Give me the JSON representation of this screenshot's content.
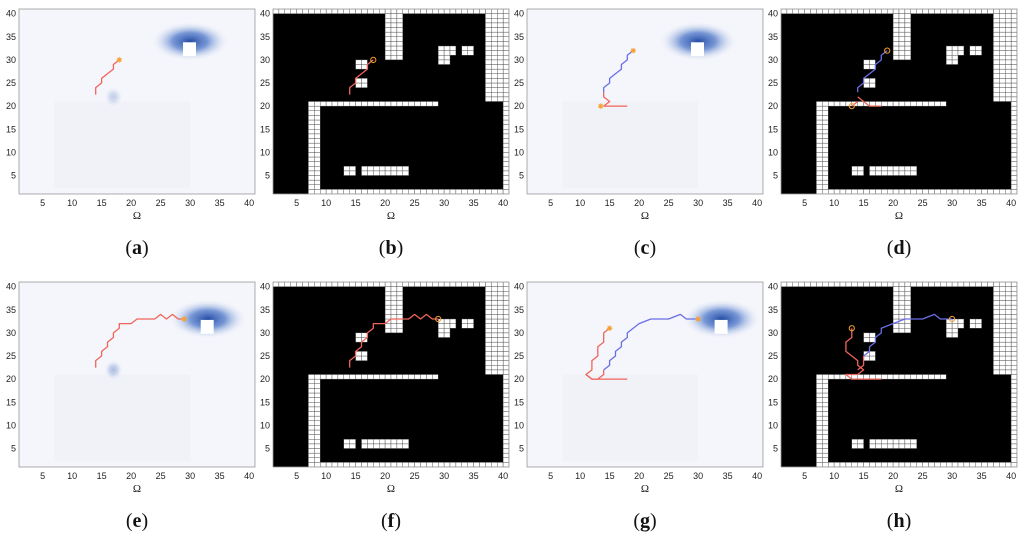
{
  "x_axis_label": "Ω",
  "x_ticks": [
    5,
    10,
    15,
    20,
    25,
    30,
    35,
    40
  ],
  "y_ticks": [
    5,
    10,
    15,
    20,
    25,
    30,
    35,
    40
  ],
  "domain": [
    1,
    41
  ],
  "colors": {
    "path_red": "#f0645a",
    "path_blue": "#6a6ee6",
    "marker": "#f5a030",
    "heat": "#1b44a0"
  },
  "panels": [
    {
      "caption": "a",
      "kind": "heat",
      "heat_centers": [
        [
          30,
          34,
          1.0
        ],
        [
          17,
          22,
          0.25
        ]
      ],
      "paths": [
        {
          "color": "red",
          "points": [
            [
              14,
              22.5
            ],
            [
              14,
              24
            ],
            [
              15,
              25
            ],
            [
              15,
              26
            ],
            [
              16,
              27
            ],
            [
              17,
              28
            ],
            [
              17,
              29
            ],
            [
              18,
              30
            ]
          ]
        }
      ],
      "markers": [
        [
          18,
          30,
          "star"
        ]
      ]
    },
    {
      "caption": "b",
      "kind": "grid",
      "paths": [
        {
          "color": "red",
          "points": [
            [
              14,
              22.5
            ],
            [
              14,
              24
            ],
            [
              15,
              25
            ],
            [
              15,
              26
            ],
            [
              16,
              27
            ],
            [
              17,
              28
            ],
            [
              17,
              29
            ],
            [
              18,
              30
            ]
          ]
        }
      ],
      "markers": [
        [
          18,
          30,
          "circle"
        ]
      ]
    },
    {
      "caption": "c",
      "kind": "heat",
      "heat_centers": [
        [
          30,
          34,
          1.0
        ]
      ],
      "paths": [
        {
          "color": "blue",
          "points": [
            [
              14,
              23
            ],
            [
              14,
              24
            ],
            [
              15,
              25
            ],
            [
              15,
              26
            ],
            [
              16,
              27
            ],
            [
              17,
              28
            ],
            [
              17,
              29
            ],
            [
              18,
              30
            ],
            [
              18,
              31
            ],
            [
              19,
              32
            ]
          ]
        },
        {
          "color": "red",
          "points": [
            [
              14,
              20
            ],
            [
              15,
              21
            ],
            [
              14,
              22
            ],
            [
              14,
              23
            ]
          ]
        },
        {
          "color": "red",
          "points": [
            [
              14,
              20
            ],
            [
              18,
              20
            ]
          ]
        }
      ],
      "markers": [
        [
          19,
          32,
          "star"
        ],
        [
          13.5,
          20,
          "star"
        ]
      ]
    },
    {
      "caption": "d",
      "kind": "grid",
      "paths": [
        {
          "color": "blue",
          "points": [
            [
              14,
              23
            ],
            [
              14,
              24
            ],
            [
              15,
              25
            ],
            [
              15,
              26
            ],
            [
              16,
              27
            ],
            [
              17,
              28
            ],
            [
              17,
              29
            ],
            [
              18,
              30
            ],
            [
              18,
              31
            ],
            [
              19,
              32
            ]
          ]
        },
        {
          "color": "red",
          "points": [
            [
              14,
              22
            ],
            [
              15,
              21
            ],
            [
              16,
              20
            ],
            [
              18,
              20
            ]
          ]
        },
        {
          "color": "red",
          "points": [
            [
              13,
              20
            ],
            [
              14,
              21
            ]
          ]
        }
      ],
      "markers": [
        [
          19,
          32,
          "circle"
        ],
        [
          13,
          20,
          "circle"
        ]
      ]
    },
    {
      "caption": "e",
      "kind": "heat",
      "heat_centers": [
        [
          33,
          33,
          1.0
        ],
        [
          17,
          22,
          0.35
        ]
      ],
      "paths": [
        {
          "color": "red",
          "points": [
            [
              14,
              22.5
            ],
            [
              14,
              24
            ],
            [
              15,
              25
            ],
            [
              15,
              26
            ],
            [
              16,
              27
            ],
            [
              16,
              28
            ],
            [
              17,
              29
            ],
            [
              17,
              30
            ],
            [
              18,
              31
            ],
            [
              18,
              32
            ],
            [
              20,
              32
            ],
            [
              21,
              33
            ],
            [
              24,
              33
            ],
            [
              25,
              34
            ],
            [
              26,
              33
            ],
            [
              27,
              34
            ],
            [
              28,
              33
            ],
            [
              29,
              33
            ]
          ]
        }
      ],
      "markers": [
        [
          29,
          33,
          "star"
        ]
      ]
    },
    {
      "caption": "f",
      "kind": "grid",
      "paths": [
        {
          "color": "red",
          "points": [
            [
              14,
              22.5
            ],
            [
              14,
              24
            ],
            [
              15,
              25
            ],
            [
              15,
              26
            ],
            [
              16,
              27
            ],
            [
              16,
              28
            ],
            [
              17,
              29
            ],
            [
              17,
              30
            ],
            [
              18,
              31
            ],
            [
              18,
              32
            ],
            [
              20,
              32
            ],
            [
              21,
              33
            ],
            [
              24,
              33
            ],
            [
              25,
              34
            ],
            [
              26,
              33
            ],
            [
              27,
              34
            ],
            [
              28,
              33
            ],
            [
              29,
              33
            ]
          ]
        }
      ],
      "markers": [
        [
          29,
          33,
          "circle"
        ]
      ]
    },
    {
      "caption": "g",
      "kind": "heat",
      "heat_centers": [
        [
          34,
          33,
          1.0
        ]
      ],
      "paths": [
        {
          "color": "blue",
          "points": [
            [
              14,
              22
            ],
            [
              15,
              23
            ],
            [
              15,
              24
            ],
            [
              16,
              25
            ],
            [
              16,
              26
            ],
            [
              17,
              27
            ],
            [
              17,
              28
            ],
            [
              18,
              29
            ],
            [
              18,
              30
            ],
            [
              19,
              31
            ],
            [
              20,
              32
            ],
            [
              22,
              33
            ],
            [
              25,
              33
            ],
            [
              27,
              34
            ],
            [
              28,
              33
            ],
            [
              30,
              33
            ]
          ]
        },
        {
          "color": "red",
          "points": [
            [
              15,
              31
            ],
            [
              14,
              30
            ],
            [
              14,
              28
            ],
            [
              13,
              27
            ],
            [
              13,
              25
            ],
            [
              12,
              24
            ],
            [
              12,
              22
            ],
            [
              11,
              21
            ],
            [
              12,
              20
            ],
            [
              13,
              20
            ],
            [
              14,
              21
            ],
            [
              14,
              22
            ]
          ]
        },
        {
          "color": "red",
          "points": [
            [
              11,
              21
            ],
            [
              12,
              20
            ],
            [
              18,
              20
            ]
          ]
        }
      ],
      "markers": [
        [
          30,
          33,
          "star"
        ],
        [
          15,
          31,
          "star"
        ]
      ]
    },
    {
      "caption": "h",
      "kind": "grid",
      "paths": [
        {
          "color": "blue",
          "points": [
            [
              15,
              25
            ],
            [
              16,
              26
            ],
            [
              16,
              27
            ],
            [
              17,
              28
            ],
            [
              17,
              29
            ],
            [
              18,
              30
            ],
            [
              18,
              31
            ],
            [
              20,
              32
            ],
            [
              22,
              33
            ],
            [
              25,
              33
            ],
            [
              27,
              34
            ],
            [
              28,
              33
            ],
            [
              30,
              33
            ]
          ]
        },
        {
          "color": "red",
          "points": [
            [
              13,
              31
            ],
            [
              13,
              29
            ],
            [
              12,
              28
            ],
            [
              12,
              26
            ],
            [
              13,
              25
            ],
            [
              14,
              24
            ],
            [
              14,
              23
            ],
            [
              15,
              22
            ],
            [
              14,
              21
            ],
            [
              12,
              21
            ],
            [
              13,
              20
            ],
            [
              16,
              20
            ],
            [
              18,
              20
            ]
          ]
        },
        {
          "color": "red",
          "points": [
            [
              14,
              22
            ],
            [
              15,
              23
            ],
            [
              15,
              25
            ]
          ]
        }
      ],
      "markers": [
        [
          30,
          33,
          "circle"
        ],
        [
          13,
          31,
          "circle"
        ]
      ]
    }
  ]
}
